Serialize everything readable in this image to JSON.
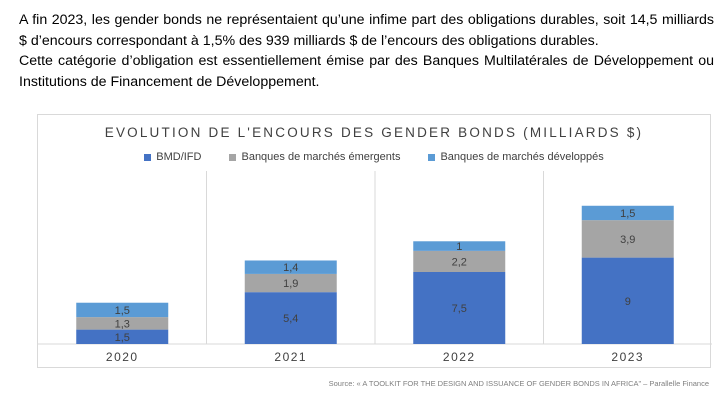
{
  "intro": {
    "line1": "A fin 2023, les gender bonds ne représentaient qu’une infime part des obligations durables, soit 14,5 milliards $ d’encours correspondant à 1,5% des 939 milliards $ de l’encours des obligations durables.",
    "line2": "Cette catégorie d’obligation est essentiellement émise par des Banques Multilatérales de Développement ou Institutions de Financement de Développement."
  },
  "chart_data": {
    "type": "bar",
    "stacked": true,
    "title": "EVOLUTION DE L'ENCOURS DES GENDER BONDS (MILLIARDS $)",
    "categories": [
      "2020",
      "2021",
      "2022",
      "2023"
    ],
    "series": [
      {
        "name": "BMD/IFD",
        "color": "#4472c4",
        "values": [
          1.5,
          5.4,
          7.5,
          9
        ],
        "labels": [
          "1,5",
          "5,4",
          "7,5",
          "9"
        ]
      },
      {
        "name": "Banques de marchés émergents",
        "color": "#a5a5a5",
        "values": [
          1.3,
          1.9,
          2.2,
          3.9
        ],
        "labels": [
          "1,3",
          "1,9",
          "2,2",
          "3,9"
        ]
      },
      {
        "name": "Banques de marchés développés",
        "color": "#5b9bd5",
        "values": [
          1.5,
          1.4,
          1,
          1.5
        ],
        "labels": [
          "1,5",
          "1,4",
          "1",
          "1,5"
        ]
      }
    ],
    "ylim": [
      0,
      16
    ],
    "legend_position": "top",
    "grid": false
  },
  "source": "Source: « A TOOLKIT FOR THE DESIGN AND ISSUANCE OF GENDER BONDS IN AFRICA” – Parallelle Finance"
}
